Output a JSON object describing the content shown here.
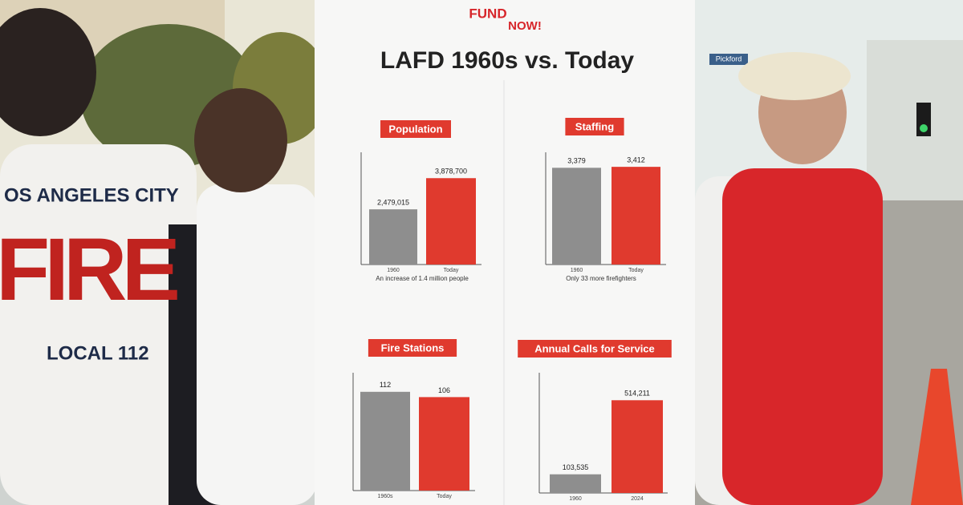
{
  "poster": {
    "logo": [
      "FUND",
      "NOW!"
    ],
    "title": "LAFD 1960s vs. Today",
    "charts": [
      {
        "label": "Population",
        "categories": [
          "1960",
          "Today"
        ],
        "values": [
          2479015,
          3878700
        ],
        "value_labels": [
          "2,479,015",
          "3,878,700"
        ],
        "ylim": [
          0,
          4500000
        ],
        "caption": "An increase of 1.4 million people"
      },
      {
        "label": "Staffing",
        "categories": [
          "1960",
          "Today"
        ],
        "values": [
          3379,
          3412
        ],
        "value_labels": [
          "3,379",
          "3,412"
        ],
        "ylim": [
          0,
          3500
        ],
        "caption": "Only 33 more firefighters"
      },
      {
        "label": "Fire Stations",
        "categories": [
          "1960s",
          "Today"
        ],
        "values": [
          112,
          106
        ],
        "ylim": [
          0,
          120
        ]
      },
      {
        "label": "Annual Calls for Service",
        "categories": [
          "1960",
          "2024"
        ],
        "values": [
          103535,
          514211
        ],
        "value_labels": [
          "103,535",
          "514,211"
        ],
        "ylim": [
          0,
          600000
        ]
      }
    ]
  },
  "shirt": {
    "lines": [
      "OS ANGELES CITY",
      "FIRE",
      "LOCAL 112"
    ]
  },
  "street_sign": "Pickford"
}
